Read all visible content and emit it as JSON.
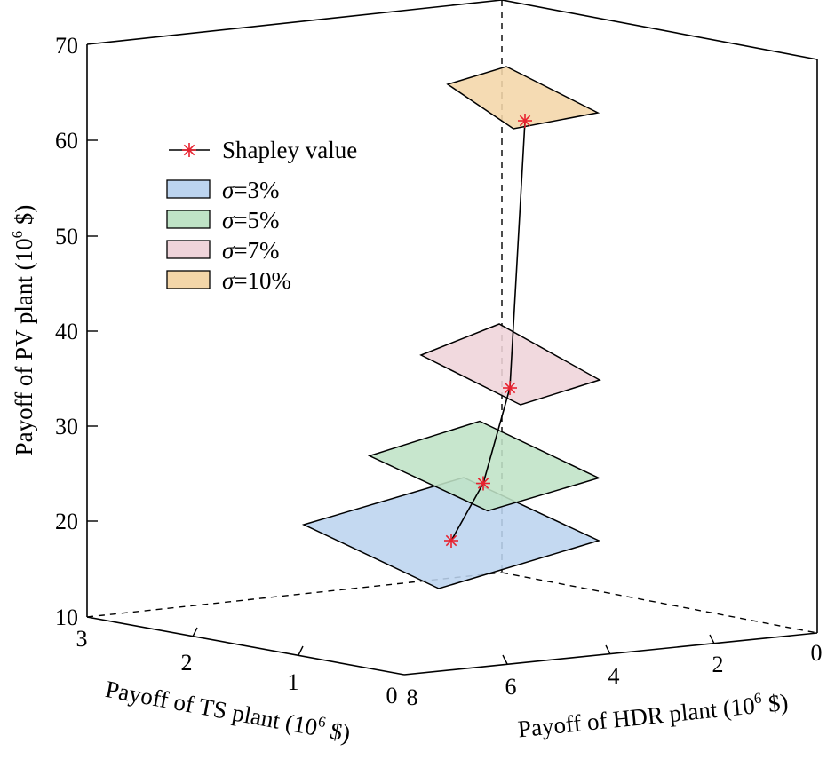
{
  "chart_data": {
    "type": "3d-surface",
    "x_axis": {
      "label": "Payoff of TS plant (10",
      "label_sup": "6",
      "label_end": " $)",
      "range": [
        0,
        3
      ],
      "ticks": [
        "3",
        "2",
        "1",
        "0"
      ]
    },
    "y_axis": {
      "label": "Payoff of HDR plant (10",
      "label_sup": "6",
      "label_end": " $)",
      "range": [
        0,
        8
      ],
      "ticks": [
        "8",
        "6",
        "4",
        "2",
        "0"
      ]
    },
    "z_axis": {
      "label": "Payoff of PV plant (10",
      "label_sup": "6",
      "label_end": " $)",
      "range": [
        10,
        70
      ],
      "ticks": [
        "10",
        "20",
        "30",
        "40",
        "50",
        "60",
        "70"
      ]
    },
    "legend": {
      "placement": "upper-left",
      "shapley_label": "Shapley value",
      "sigma_symbol": "σ"
    },
    "series": [
      {
        "name": "=3%",
        "color": "#bcd4ef",
        "payoff_pv": 18
      },
      {
        "name": "=5%",
        "color": "#bfe3c6",
        "payoff_pv": 24
      },
      {
        "name": "=7%",
        "color": "#efd4da",
        "payoff_pv": 34
      },
      {
        "name": "=10%",
        "color": "#f4d6a8",
        "payoff_pv": 62
      }
    ],
    "shapley_values": [
      {
        "sigma": "3%",
        "payoff_pv": 18
      },
      {
        "sigma": "5%",
        "payoff_pv": 24
      },
      {
        "sigma": "7%",
        "payoff_pv": 34
      },
      {
        "sigma": "10%",
        "payoff_pv": 62
      }
    ],
    "marker_color": "#e8212e",
    "grid": false
  }
}
